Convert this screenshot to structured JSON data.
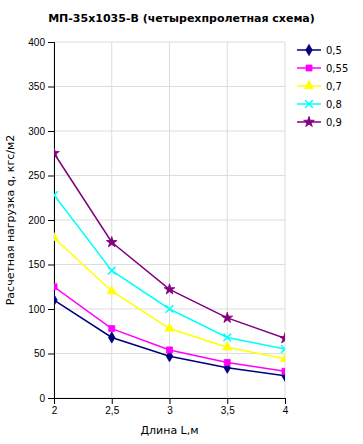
{
  "chart_data": {
    "type": "line",
    "title": "МП-35х1035-В (четырехпролетная схема)",
    "xlabel": "Длина L,м",
    "ylabel": "Расчетная нагрузка q, кгс/м2",
    "x": [
      2,
      2.5,
      3,
      3.5,
      4
    ],
    "xlim": [
      2,
      4
    ],
    "ylim": [
      0,
      400
    ],
    "xticks": [
      2,
      {
        "value": 2.5,
        "label": "2,5"
      },
      3,
      {
        "value": 3.5,
        "label": "3,5"
      },
      4
    ],
    "yticks": [
      0,
      50,
      100,
      150,
      200,
      250,
      300,
      350,
      400
    ],
    "grid": true,
    "legend": "right",
    "series": [
      {
        "name": "0,5",
        "color": "#00007F",
        "marker": "diamond",
        "values": [
          110,
          68,
          47,
          34,
          25
        ]
      },
      {
        "name": "0,55",
        "color": "#FF00FF",
        "marker": "square",
        "values": [
          125,
          78,
          54,
          40,
          30
        ]
      },
      {
        "name": "0,7",
        "color": "#FFFF00",
        "marker": "triangle",
        "values": [
          180,
          120,
          78,
          57,
          44
        ]
      },
      {
        "name": "0,8",
        "color": "#00FFFF",
        "marker": "x",
        "values": [
          228,
          143,
          100,
          68,
          55
        ]
      },
      {
        "name": "0,9",
        "color": "#800080",
        "marker": "star",
        "values": [
          275,
          175,
          122,
          90,
          67
        ]
      }
    ]
  }
}
